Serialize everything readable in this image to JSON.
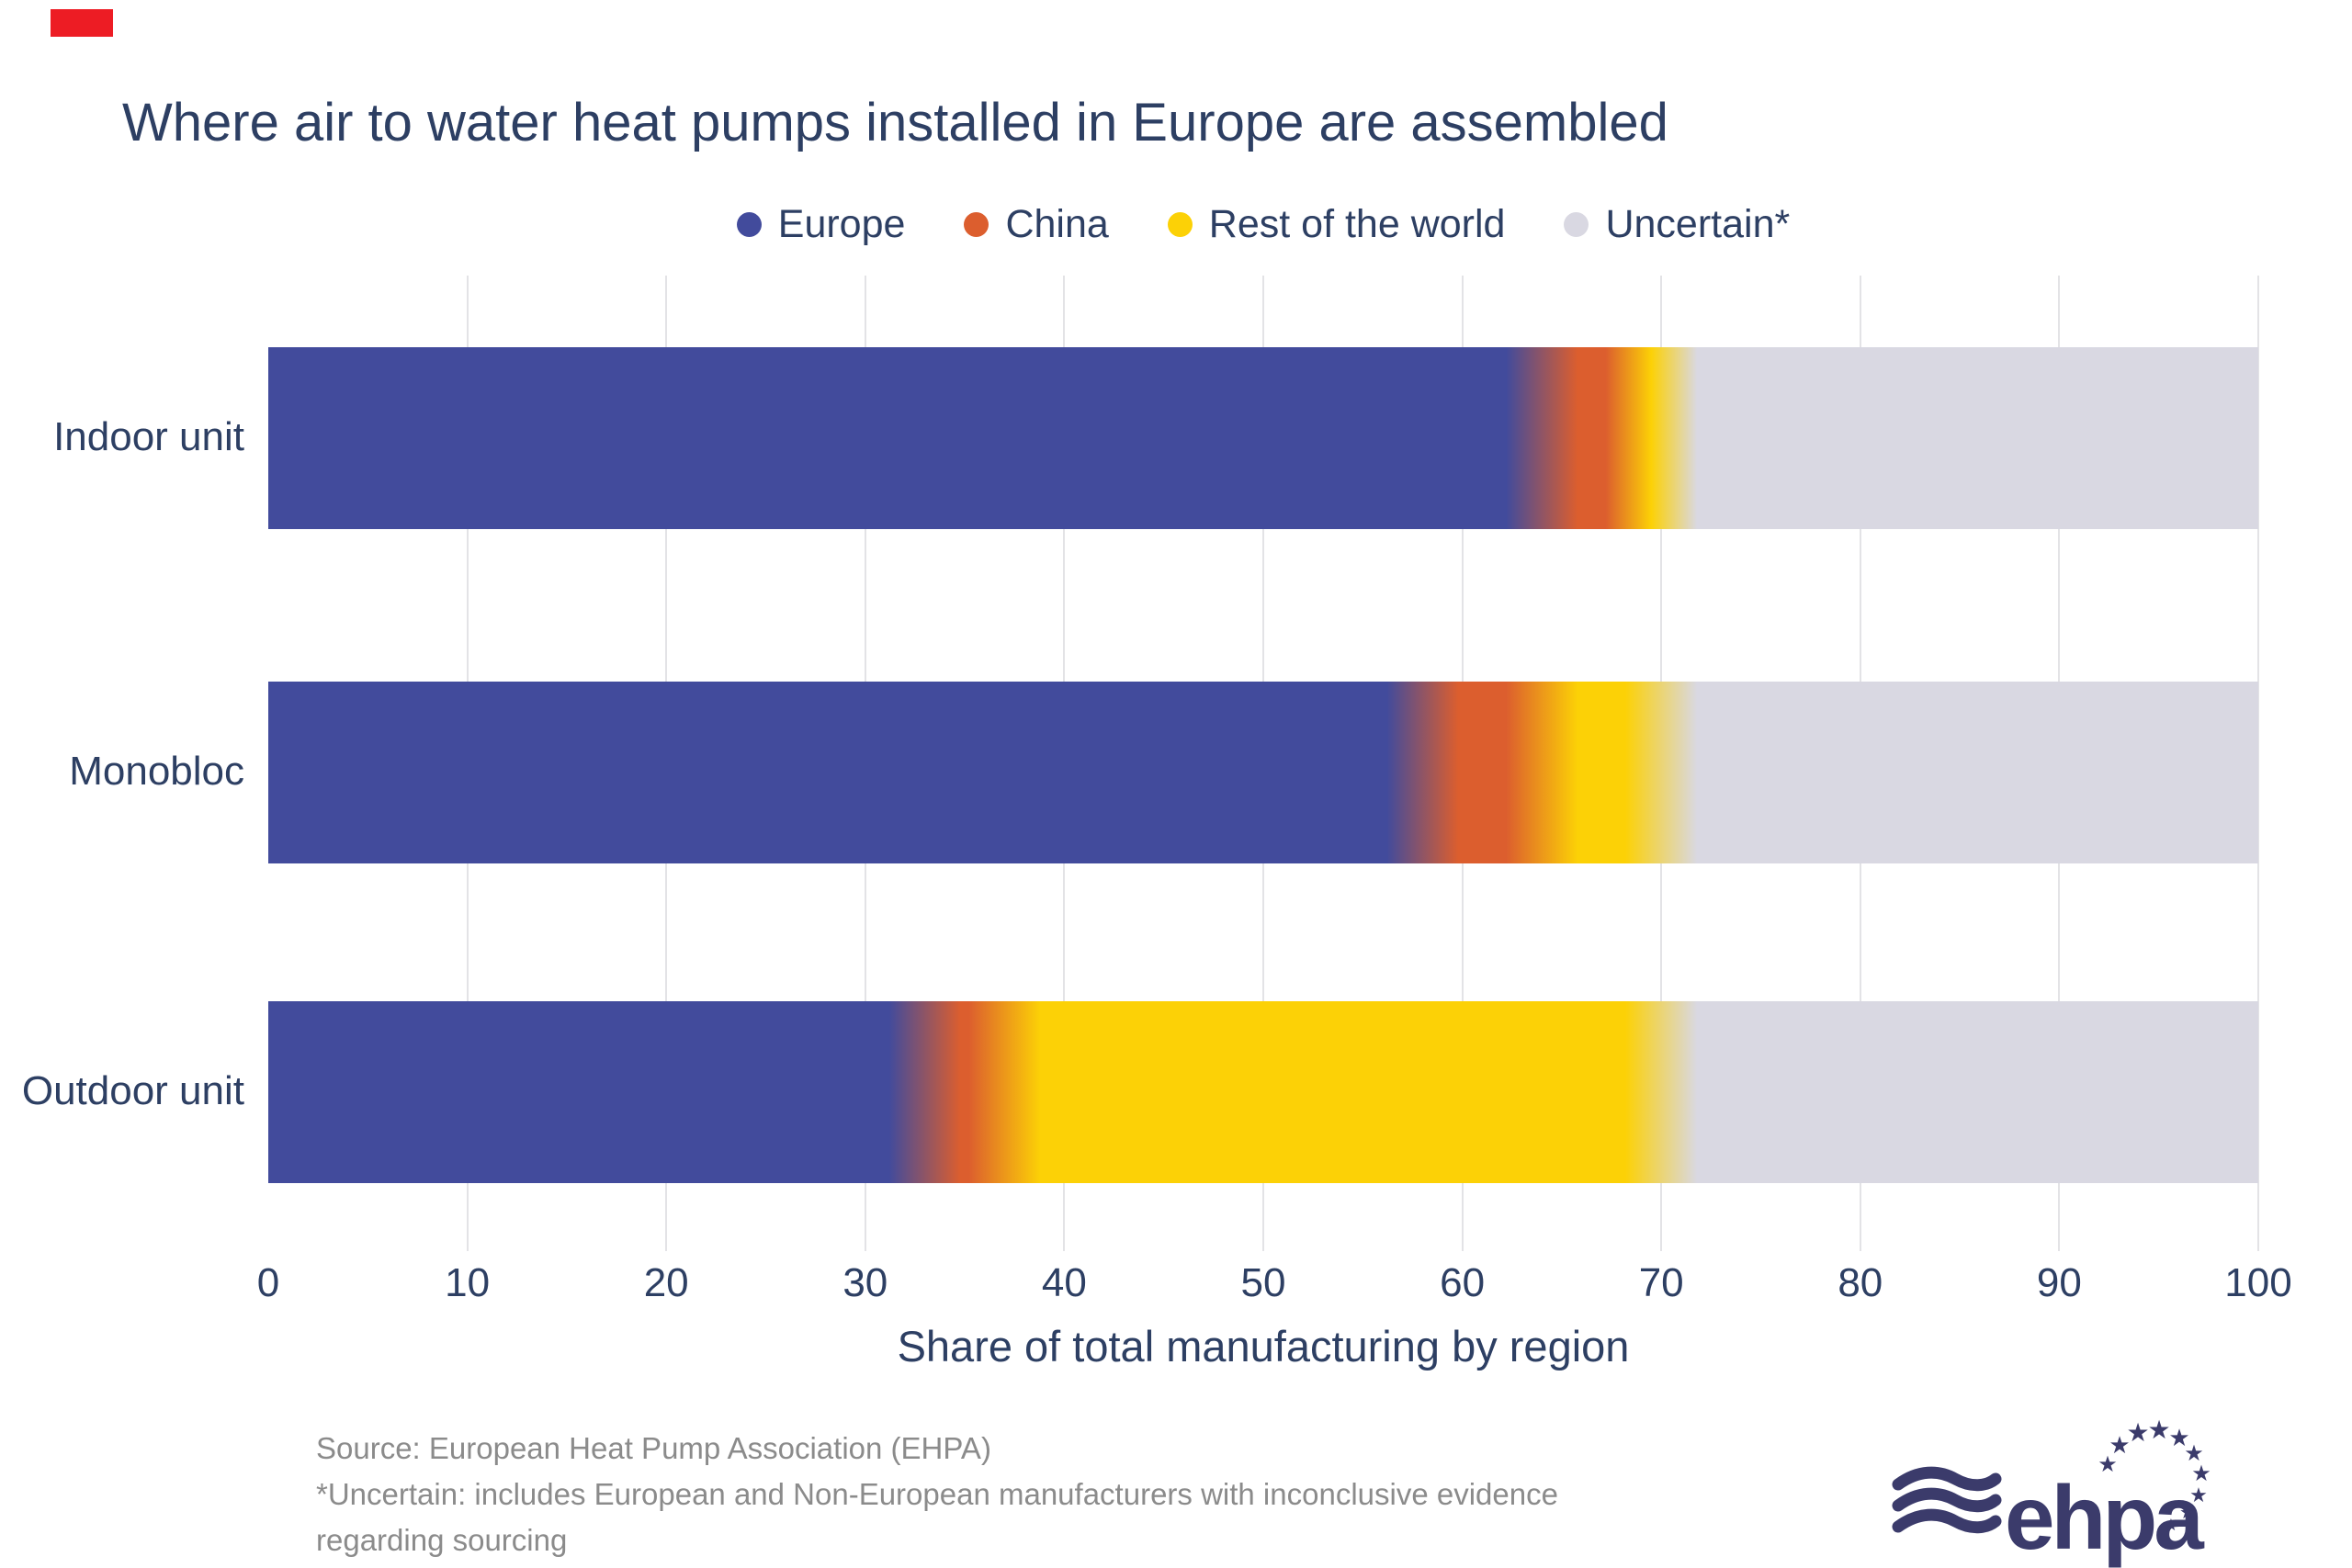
{
  "title": "Where air to water heat pumps installed in Europe are assembled",
  "chart_data": {
    "type": "bar",
    "stacked": true,
    "orientation": "horizontal",
    "title": "Where air to water heat pumps installed in Europe are assembled",
    "categories": [
      "Indoor unit",
      "Monobloc",
      "Outdoor unit"
    ],
    "series": [
      {
        "name": "Europe",
        "color": "#424b9c",
        "values": [
          64,
          58,
          33
        ]
      },
      {
        "name": "China",
        "color": "#dc5e2e",
        "values": [
          5,
          6,
          4
        ]
      },
      {
        "name": "Rest of the world",
        "color": "#fcd106",
        "values": [
          1,
          6,
          33
        ]
      },
      {
        "name": "Uncertain*",
        "color": "#d9d8e2",
        "values": [
          30,
          30,
          30
        ]
      }
    ],
    "xlabel": "Share of total manufacturing by region",
    "ylabel": "",
    "xlim": [
      0,
      100
    ],
    "x_ticks": [
      "0",
      "10",
      "20",
      "30",
      "40",
      "50",
      "60",
      "70",
      "80",
      "90",
      "100"
    ],
    "grid": true,
    "legend_position": "top"
  },
  "footer": {
    "lines": [
      "Source: European Heat Pump Association (EHPA)",
      "*Uncertain: includes European and Non-European manufacturers with inconclusive evidence",
      "regarding sourcing"
    ]
  },
  "logo": {
    "wordmark": "ehpa"
  },
  "colors": {
    "text_navy": "#2d3f63",
    "grid": "#e3e3e6",
    "footer_gray": "#8b8b8b",
    "logo_navy": "#3b3b6b",
    "marker_red": "#ed1c24"
  }
}
